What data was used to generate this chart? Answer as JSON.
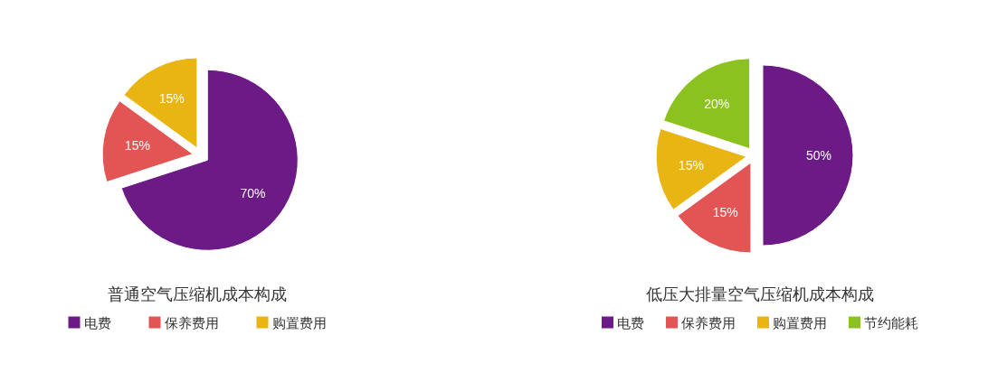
{
  "chart_data": [
    {
      "type": "pie",
      "title": "普通空气压缩机成本构成",
      "categories": [
        "电费",
        "保养费用",
        "购置费用"
      ],
      "values": [
        70,
        15,
        15
      ],
      "colors": [
        "#6b1a86",
        "#e35555",
        "#e8b512"
      ],
      "value_labels": [
        "70%",
        "15%",
        "15%"
      ],
      "legend": "bottom"
    },
    {
      "type": "pie",
      "title": "低压大排量空气压缩机成本构成",
      "categories": [
        "电费",
        "保养费用",
        "购置费用",
        "节约能耗"
      ],
      "values": [
        50,
        15,
        15,
        20
      ],
      "colors": [
        "#6b1a86",
        "#e35555",
        "#e8b512",
        "#8cc21f"
      ],
      "value_labels": [
        "50%",
        "15%",
        "15%",
        "20%"
      ],
      "legend": "bottom"
    }
  ]
}
